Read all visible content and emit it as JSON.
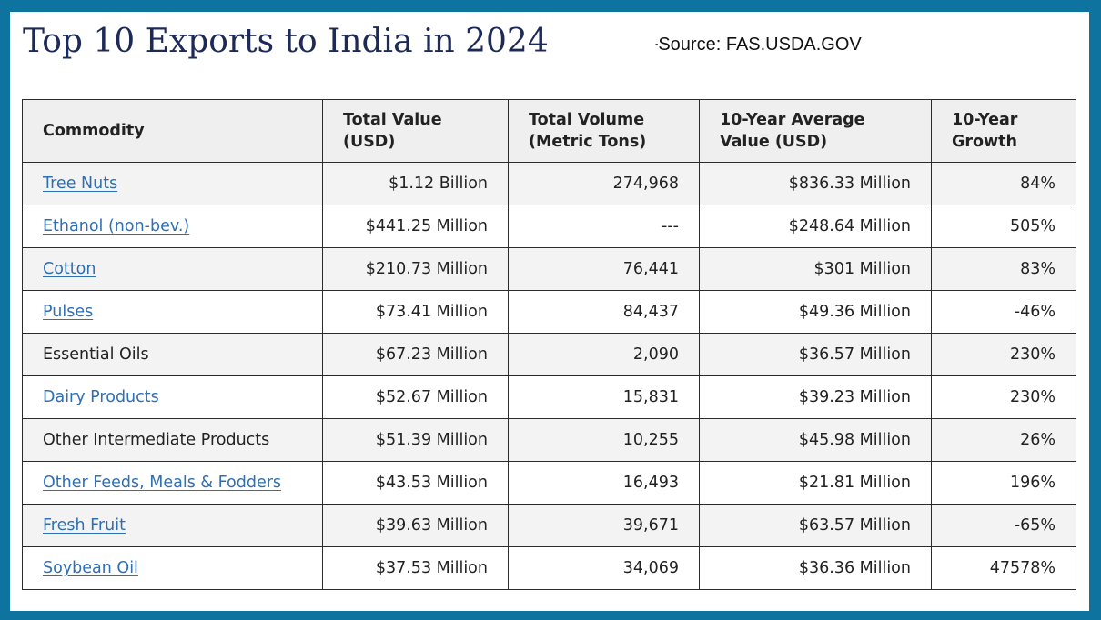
{
  "header": {
    "title": "Top 10 Exports to India in 2024",
    "source_mark": "-",
    "source": "Source: FAS.USDA.GOV"
  },
  "table": {
    "columns": [
      {
        "line1": "Commodity",
        "line2": ""
      },
      {
        "line1": "Total Value",
        "line2": "(USD)"
      },
      {
        "line1": "Total Volume",
        "line2": "(Metric Tons)"
      },
      {
        "line1": "10-Year Average",
        "line2": "Value (USD)"
      },
      {
        "line1": "10-Year",
        "line2": "Growth"
      }
    ],
    "rows": [
      {
        "commodity": "Tree Nuts",
        "is_link": true,
        "total_value": "$1.12 Billion",
        "total_volume": "274,968",
        "avg_value": "$836.33 Million",
        "growth": "84%"
      },
      {
        "commodity": "Ethanol (non-bev.)",
        "is_link": true,
        "total_value": "$441.25 Million",
        "total_volume": "---",
        "avg_value": "$248.64 Million",
        "growth": "505%"
      },
      {
        "commodity": "Cotton",
        "is_link": true,
        "total_value": "$210.73 Million",
        "total_volume": "76,441",
        "avg_value": "$301 Million",
        "growth": "83%"
      },
      {
        "commodity": "Pulses",
        "is_link": true,
        "total_value": "$73.41 Million",
        "total_volume": "84,437",
        "avg_value": "$49.36 Million",
        "growth": "-46%"
      },
      {
        "commodity": "Essential Oils",
        "is_link": false,
        "total_value": "$67.23 Million",
        "total_volume": "2,090",
        "avg_value": "$36.57 Million",
        "growth": "230%"
      },
      {
        "commodity": "Dairy Products",
        "is_link": true,
        "total_value": "$52.67 Million",
        "total_volume": "15,831",
        "avg_value": "$39.23 Million",
        "growth": "230%"
      },
      {
        "commodity": "Other Intermediate Products",
        "is_link": false,
        "total_value": "$51.39 Million",
        "total_volume": "10,255",
        "avg_value": "$45.98 Million",
        "growth": "26%"
      },
      {
        "commodity": "Other Feeds, Meals & Fodders",
        "is_link": true,
        "total_value": "$43.53 Million",
        "total_volume": "16,493",
        "avg_value": "$21.81 Million",
        "growth": "196%"
      },
      {
        "commodity": "Fresh Fruit",
        "is_link": true,
        "total_value": "$39.63 Million",
        "total_volume": "39,671",
        "avg_value": "$63.57 Million",
        "growth": "-65%"
      },
      {
        "commodity": "Soybean Oil",
        "is_link": true,
        "total_value": "$37.53 Million",
        "total_volume": "34,069",
        "avg_value": "$36.36 Million",
        "growth": "47578%"
      }
    ]
  },
  "colors": {
    "frame": "#0f73a0",
    "title": "#1d2a57",
    "link": "#2f6fb3",
    "header_bg": "#efefef"
  }
}
